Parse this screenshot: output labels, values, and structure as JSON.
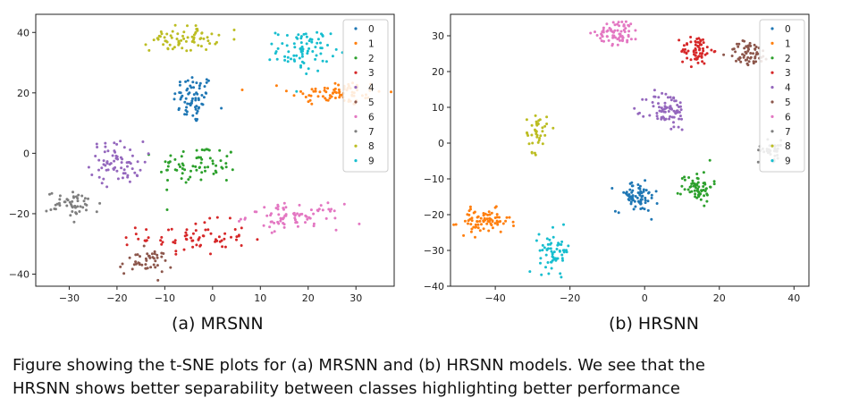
{
  "colors": {
    "0": "#1f77b4",
    "1": "#bcbd22",
    "2": "#7f7f7f",
    "3": "#d62728",
    "4": "#9467bd",
    "5": "#8c564b",
    "6": "#e377c2",
    "7": "#8c564b",
    "8": "#bcbd22",
    "9": "#17becf",
    "legend_override": [
      "#1f77b4",
      "#ff7f0e",
      "#2ca02c",
      "#d62728",
      "#9467bd",
      "#8c564b",
      "#e377c2",
      "#7f7f7f",
      "#bcbd22",
      "#17becf"
    ]
  },
  "chart_data": [
    {
      "type": "scatter",
      "title": "",
      "xlabel": "",
      "ylabel": "",
      "xlim": [
        -37,
        38
      ],
      "ylim": [
        -44,
        46
      ],
      "xticks": [
        -30,
        -20,
        -10,
        0,
        10,
        20,
        30
      ],
      "yticks": [
        -40,
        -20,
        0,
        20,
        40
      ],
      "legend": {
        "placement": "top-right",
        "entries": [
          "0",
          "1",
          "2",
          "3",
          "4",
          "5",
          "6",
          "7",
          "8",
          "9"
        ]
      },
      "clusters": [
        {
          "label": "0",
          "color": "#1f77b4",
          "center": [
            -4,
            18
          ],
          "spread": [
            3,
            6
          ],
          "n": 70
        },
        {
          "label": "1",
          "color": "#ff7f0e",
          "center": [
            26,
            20
          ],
          "spread": [
            7,
            3
          ],
          "n": 80
        },
        {
          "label": "2",
          "color": "#2ca02c",
          "center": [
            -3,
            -4
          ],
          "spread": [
            6,
            5
          ],
          "n": 70
        },
        {
          "label": "3",
          "color": "#d62728",
          "center": [
            -4,
            -28
          ],
          "spread": [
            8,
            4
          ],
          "n": 70
        },
        {
          "label": "4",
          "color": "#9467bd",
          "center": [
            -20,
            -3
          ],
          "spread": [
            4,
            5
          ],
          "n": 70
        },
        {
          "label": "5",
          "color": "#8c564b",
          "center": [
            -14,
            -36
          ],
          "spread": [
            4,
            3
          ],
          "n": 45
        },
        {
          "label": "6",
          "color": "#e377c2",
          "center": [
            17,
            -21
          ],
          "spread": [
            7,
            3
          ],
          "n": 80
        },
        {
          "label": "7",
          "color": "#7f7f7f",
          "center": [
            -29,
            -17
          ],
          "spread": [
            4,
            3
          ],
          "n": 50
        },
        {
          "label": "8",
          "color": "#bcbd22",
          "center": [
            -6,
            38
          ],
          "spread": [
            5,
            3
          ],
          "n": 70
        },
        {
          "label": "9",
          "color": "#17becf",
          "center": [
            19,
            34
          ],
          "spread": [
            4,
            5
          ],
          "n": 80
        }
      ]
    },
    {
      "type": "scatter",
      "title": "",
      "xlabel": "",
      "ylabel": "",
      "xlim": [
        -52,
        44
      ],
      "ylim": [
        -40,
        36
      ],
      "xticks": [
        -40,
        -20,
        0,
        20,
        40
      ],
      "yticks": [
        -40,
        -30,
        -20,
        -10,
        0,
        10,
        20,
        30
      ],
      "legend": {
        "placement": "top-right",
        "entries": [
          "0",
          "1",
          "2",
          "3",
          "4",
          "5",
          "6",
          "7",
          "8",
          "9"
        ]
      },
      "clusters": [
        {
          "label": "0",
          "color": "#1f77b4",
          "center": [
            -2,
            -15
          ],
          "spread": [
            4,
            3
          ],
          "n": 70
        },
        {
          "label": "1",
          "color": "#ff7f0e",
          "center": [
            -43,
            -22
          ],
          "spread": [
            5,
            2.5
          ],
          "n": 80
        },
        {
          "label": "2",
          "color": "#2ca02c",
          "center": [
            14,
            -12
          ],
          "spread": [
            3,
            3
          ],
          "n": 65
        },
        {
          "label": "3",
          "color": "#d62728",
          "center": [
            14,
            26
          ],
          "spread": [
            3,
            3
          ],
          "n": 65
        },
        {
          "label": "4",
          "color": "#9467bd",
          "center": [
            6,
            9
          ],
          "spread": [
            4,
            4
          ],
          "n": 75
        },
        {
          "label": "5",
          "color": "#8c564b",
          "center": [
            28,
            25
          ],
          "spread": [
            4,
            2.5
          ],
          "n": 60
        },
        {
          "label": "6",
          "color": "#e377c2",
          "center": [
            -7,
            31
          ],
          "spread": [
            4,
            2.5
          ],
          "n": 70
        },
        {
          "label": "7",
          "color": "#7f7f7f",
          "center": [
            34,
            -2
          ],
          "spread": [
            2.5,
            2
          ],
          "n": 35
        },
        {
          "label": "8",
          "color": "#bcbd22",
          "center": [
            -29,
            3
          ],
          "spread": [
            2,
            4
          ],
          "n": 40
        },
        {
          "label": "9",
          "color": "#17becf",
          "center": [
            -24,
            -30
          ],
          "spread": [
            3,
            4
          ],
          "n": 60
        }
      ]
    }
  ],
  "captions": {
    "a": "(a) MRSNN",
    "b": "(b) HRSNN",
    "figure_line1": "Figure showing the t-SNE plots for (a) MRSNN and (b) HRSNN models. We see that the",
    "figure_line2": "HRSNN shows better separability between classes highlighting better performance"
  }
}
